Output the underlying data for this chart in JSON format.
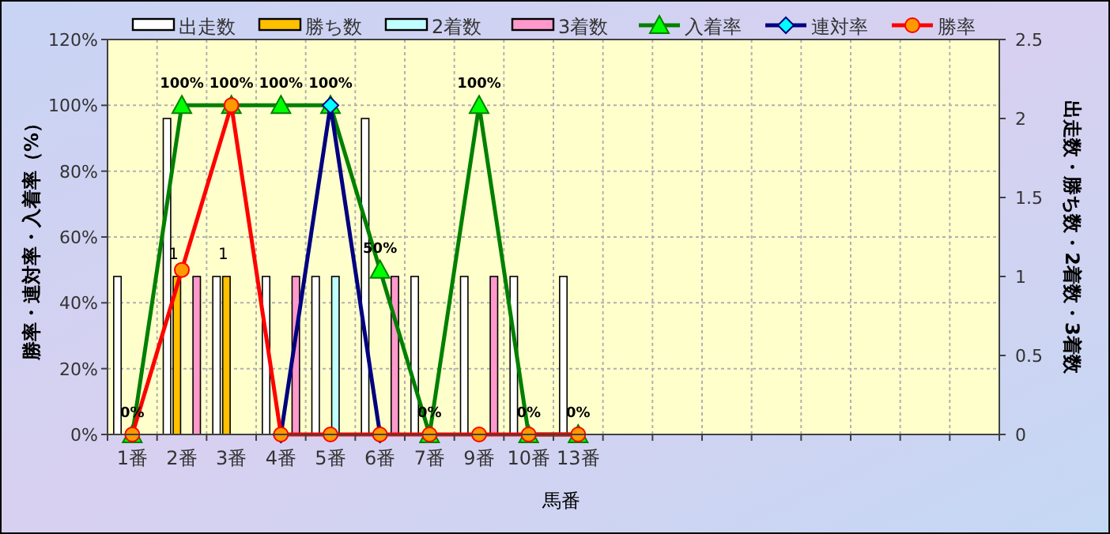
{
  "chart_data": {
    "type": "bar",
    "xlabel": "馬番",
    "ylabel": "勝率・連対率・入着率（%）",
    "y2label": "出走数・勝ち数・2着数・3着数",
    "categories": [
      "1番",
      "2番",
      "3番",
      "4番",
      "5番",
      "6番",
      "7番",
      "9番",
      "10番",
      "13番",
      null,
      null,
      null,
      null,
      null,
      null,
      null,
      null
    ],
    "series": [
      {
        "name": "出走数",
        "axis": "y2",
        "color": "#ffffff",
        "values": [
          1,
          2,
          1,
          1,
          1,
          2,
          1,
          1,
          1,
          1,
          null,
          null,
          null,
          null,
          null,
          null,
          null,
          null
        ]
      },
      {
        "name": "勝ち数",
        "axis": "y2",
        "color": "#ffc000",
        "values": [
          0,
          1,
          1,
          0,
          0,
          0,
          0,
          0,
          0,
          0,
          null,
          null,
          null,
          null,
          null,
          null,
          null,
          null
        ],
        "value_labels": [
          null,
          "1",
          "1",
          null,
          null,
          null,
          null,
          null,
          null,
          null,
          null,
          null,
          null,
          null,
          null,
          null,
          null,
          null
        ]
      },
      {
        "name": "2着数",
        "axis": "y2",
        "color": "#c0ffff",
        "values": [
          0,
          0,
          0,
          0,
          1,
          0,
          0,
          0,
          0,
          0,
          null,
          null,
          null,
          null,
          null,
          null,
          null,
          null
        ]
      },
      {
        "name": "3着数",
        "axis": "y2",
        "color": "#ff99cc",
        "values": [
          0,
          1,
          0,
          1,
          0,
          1,
          0,
          1,
          0,
          0,
          null,
          null,
          null,
          null,
          null,
          null,
          null,
          null
        ]
      },
      {
        "name": "入着率",
        "type": "line",
        "color": "#008000",
        "marker": "triangle",
        "values": [
          0,
          100,
          100,
          100,
          100,
          50,
          0,
          100,
          0,
          0,
          null,
          null,
          null,
          null,
          null,
          null,
          null,
          null
        ],
        "value_labels": [
          "0%",
          "100%",
          "100%",
          "100%",
          "100%",
          "50%",
          "0%",
          "100%",
          "0%",
          "0%",
          null,
          null,
          null,
          null,
          null,
          null,
          null,
          null
        ]
      },
      {
        "name": "連対率",
        "type": "line",
        "color": "#000080",
        "marker": "diamond",
        "values": [
          null,
          null,
          null,
          0,
          100,
          0,
          null,
          null,
          null,
          null,
          null,
          null,
          null,
          null,
          null,
          null,
          null,
          null
        ]
      },
      {
        "name": "勝率",
        "type": "line",
        "color": "#ff0000",
        "marker": "circle",
        "values": [
          0,
          50,
          100,
          0,
          0,
          0,
          0,
          0,
          0,
          0,
          null,
          null,
          null,
          null,
          null,
          null,
          null,
          null
        ]
      }
    ],
    "ylim": [
      0,
      120
    ],
    "yticks": [
      {
        "value": 0,
        "label": "0%"
      },
      {
        "value": 20,
        "label": "20%"
      },
      {
        "value": 40,
        "label": "40%"
      },
      {
        "value": 60,
        "label": "60%"
      },
      {
        "value": 80,
        "label": "80%"
      },
      {
        "value": 100,
        "label": "100%"
      },
      {
        "value": 120,
        "label": "120%"
      }
    ],
    "y2lim": [
      0,
      2.5
    ],
    "y2ticks": [
      0,
      0.5,
      1,
      1.5,
      2,
      2.5
    ],
    "grid": true,
    "legend": "top",
    "line_style": "solid"
  }
}
